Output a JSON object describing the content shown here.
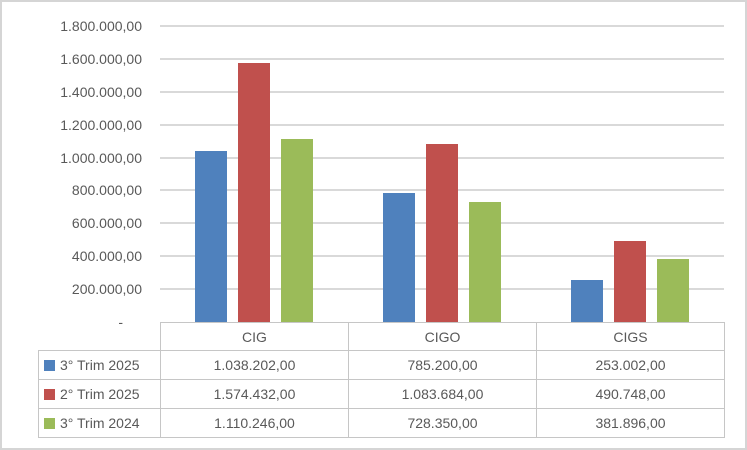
{
  "window": {
    "background_color": "#ffffff",
    "border_color": "#d5d5d5"
  },
  "chart_data": {
    "type": "bar",
    "title": "",
    "xlabel": "",
    "ylabel": "",
    "categories": [
      "CIG",
      "CIGO",
      "CIGS"
    ],
    "series": [
      {
        "name": "3° Trim 2025",
        "color": "#4f81bd",
        "values": [
          1038202.0,
          785200.0,
          253002.0
        ]
      },
      {
        "name": "2° Trim 2025",
        "color": "#c0504d",
        "values": [
          1574432.0,
          1083684.0,
          490748.0
        ]
      },
      {
        "name": "3° Trim 2024",
        "color": "#9bbb59",
        "values": [
          1110246.0,
          728350.0,
          381896.0
        ]
      }
    ],
    "ylim": [
      0,
      1800000
    ],
    "ytick_interval": 200000,
    "ytick_labels": [
      "1.800.000,00",
      "1.600.000,00",
      "1.400.000,00",
      "1.200.000,00",
      "1.000.000,00",
      "800.000,00",
      "600.000,00",
      "400.000,00",
      "200.000,00",
      "-"
    ],
    "grid": true,
    "gridline_color": "#d9d9d9",
    "legend_position": "data-table-left"
  },
  "data_table": {
    "column_headers": [
      "CIG",
      "CIGO",
      "CIGS"
    ],
    "rows": [
      {
        "label": "3° Trim 2025",
        "marker_color": "#4f81bd",
        "values": [
          "1.038.202,00",
          "785.200,00",
          "253.002,00"
        ]
      },
      {
        "label": "2° Trim 2025",
        "marker_color": "#c0504d",
        "values": [
          "1.574.432,00",
          "1.083.684,00",
          "490.748,00"
        ]
      },
      {
        "label": "3° Trim 2024",
        "marker_color": "#9bbb59",
        "values": [
          "1.110.246,00",
          "728.350,00",
          "381.896,00"
        ]
      }
    ],
    "border_color": "#c6c6c6",
    "text_color": "#595959"
  }
}
